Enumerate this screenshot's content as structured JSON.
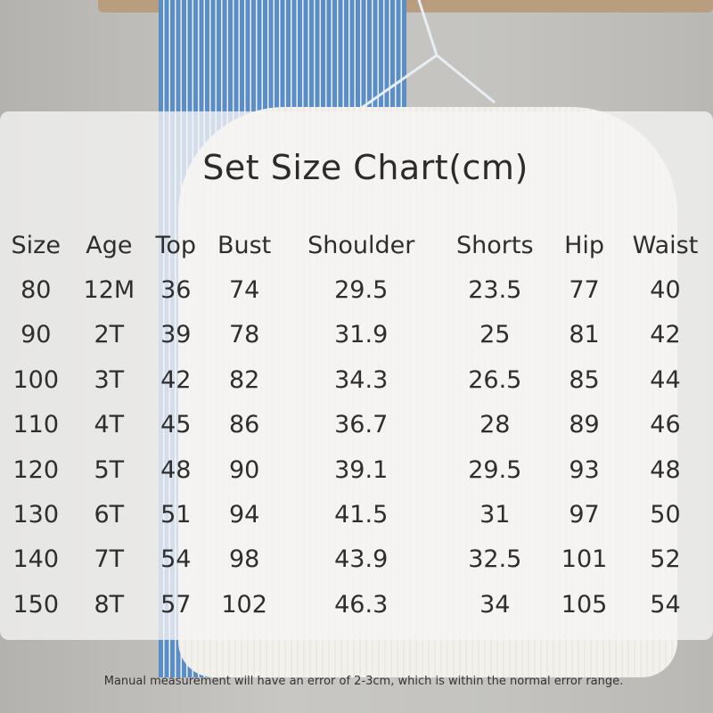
{
  "title": "Set Size Chart(cm)",
  "table": {
    "headers": [
      "Size",
      "Age",
      "Top",
      "Bust",
      "Shoulder",
      "Shorts",
      "Hip",
      "Waist"
    ],
    "rows": [
      [
        "80",
        "12M",
        "36",
        "74",
        "29.5",
        "23.5",
        "77",
        "40"
      ],
      [
        "90",
        "2T",
        "39",
        "78",
        "31.9",
        "25",
        "81",
        "42"
      ],
      [
        "100",
        "3T",
        "42",
        "82",
        "34.3",
        "26.5",
        "85",
        "44"
      ],
      [
        "110",
        "4T",
        "45",
        "86",
        "36.7",
        "28",
        "89",
        "46"
      ],
      [
        "120",
        "5T",
        "48",
        "90",
        "39.1",
        "29.5",
        "93",
        "48"
      ],
      [
        "130",
        "6T",
        "51",
        "94",
        "41.5",
        "31",
        "97",
        "50"
      ],
      [
        "140",
        "7T",
        "54",
        "98",
        "43.9",
        "32.5",
        "101",
        "52"
      ],
      [
        "150",
        "8T",
        "57",
        "102",
        "46.3",
        "34",
        "105",
        "54"
      ]
    ]
  },
  "note": "Manual measurement will have an error of 2-3cm, which is within the normal error range."
}
